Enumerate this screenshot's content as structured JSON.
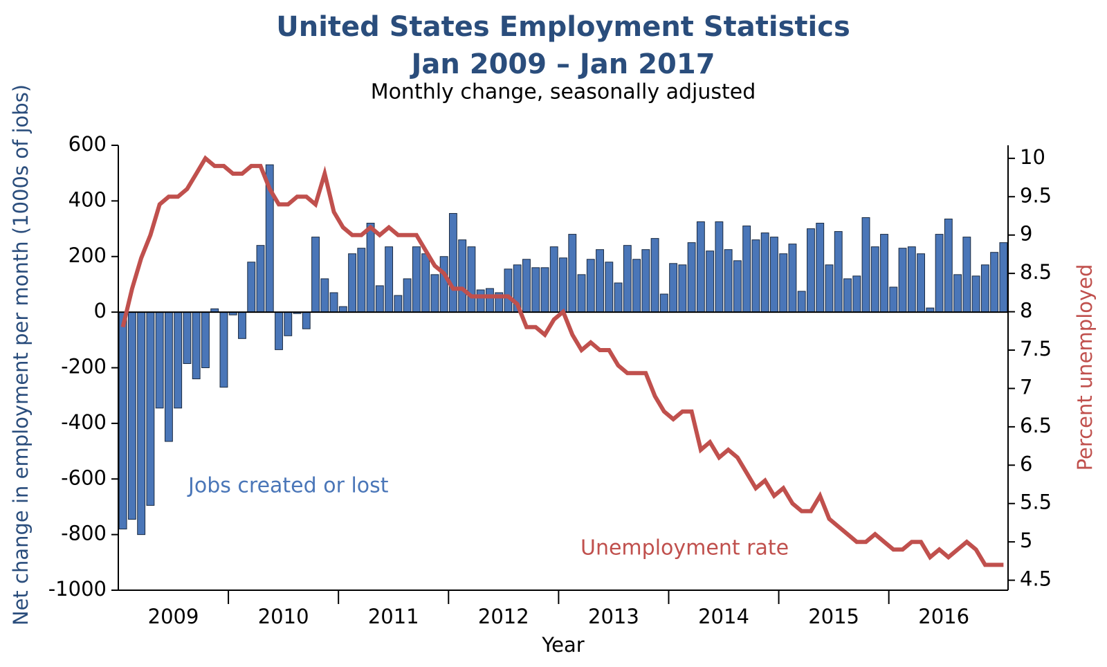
{
  "chart_data": {
    "type": "bar-line",
    "title": "United States Employment Statistics",
    "subtitle": "Jan 2009 – Jan 2017",
    "subtitle2": "Monthly change, seasonally adjusted",
    "x_label": "Year",
    "y_label": "Net change in employment per month (1000s of jobs)",
    "y2_label": "Percent unemployed",
    "xlim": [
      2009,
      2017.0833
    ],
    "xticks": [
      2010,
      2011,
      2012,
      2013,
      2014,
      2015,
      2016
    ],
    "year_labels": [
      "2009",
      "2010",
      "2011",
      "2012",
      "2013",
      "2014",
      "2015",
      "2016"
    ],
    "ylim": [
      -1000,
      600
    ],
    "yticks": [
      -1000,
      -800,
      -600,
      -400,
      -200,
      0,
      200,
      400,
      600
    ],
    "y2lim": [
      4.37,
      10.17
    ],
    "y2ticks": [
      4.5,
      5,
      5.5,
      6,
      6.5,
      7,
      7.5,
      8,
      8.5,
      9,
      9.5,
      10
    ],
    "series": [
      {
        "name": "Jobs created or lost",
        "type": "bar",
        "color": "#4a76b8",
        "values": [
          -780,
          -745,
          -800,
          -695,
          -345,
          -465,
          -345,
          -185,
          -240,
          -200,
          12,
          -270,
          -10,
          -95,
          180,
          240,
          530,
          -135,
          -85,
          -5,
          -60,
          270,
          120,
          70,
          20,
          210,
          230,
          320,
          95,
          235,
          60,
          120,
          235,
          210,
          135,
          200,
          355,
          260,
          235,
          80,
          85,
          70,
          155,
          170,
          190,
          160,
          160,
          235,
          195,
          280,
          135,
          190,
          225,
          180,
          105,
          240,
          190,
          225,
          265,
          65,
          175,
          170,
          250,
          325,
          220,
          325,
          225,
          185,
          310,
          260,
          285,
          270,
          210,
          245,
          75,
          300,
          320,
          170,
          290,
          120,
          130,
          340,
          235,
          280,
          90,
          230,
          235,
          210,
          15,
          280,
          335,
          135,
          270,
          130,
          170,
          215,
          250
        ]
      },
      {
        "name": "Unemployment rate",
        "type": "line",
        "axis": "y2",
        "color": "#c0504d",
        "values": [
          7.8,
          8.3,
          8.7,
          9.0,
          9.4,
          9.5,
          9.5,
          9.6,
          9.8,
          10.0,
          9.9,
          9.9,
          9.8,
          9.8,
          9.9,
          9.9,
          9.6,
          9.4,
          9.4,
          9.5,
          9.5,
          9.4,
          9.8,
          9.3,
          9.1,
          9.0,
          9.0,
          9.1,
          9.0,
          9.1,
          9.0,
          9.0,
          9.0,
          8.8,
          8.6,
          8.5,
          8.3,
          8.3,
          8.2,
          8.2,
          8.2,
          8.2,
          8.2,
          8.1,
          7.8,
          7.8,
          7.7,
          7.9,
          8.0,
          7.7,
          7.5,
          7.6,
          7.5,
          7.5,
          7.3,
          7.2,
          7.2,
          7.2,
          6.9,
          6.7,
          6.6,
          6.7,
          6.7,
          6.2,
          6.3,
          6.1,
          6.2,
          6.1,
          5.9,
          5.7,
          5.8,
          5.6,
          5.7,
          5.5,
          5.4,
          5.4,
          5.6,
          5.3,
          5.2,
          5.1,
          5.0,
          5.0,
          5.1,
          5.0,
          4.9,
          4.9,
          5.0,
          5.0,
          4.8,
          4.9,
          4.8,
          4.9,
          5.0,
          4.9,
          4.7,
          4.7,
          4.7
        ]
      }
    ]
  }
}
